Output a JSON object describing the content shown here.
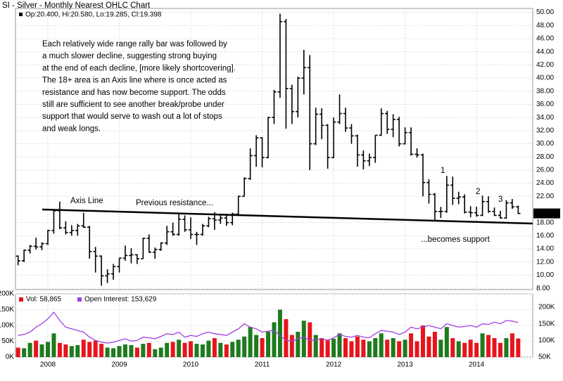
{
  "chart_data": {
    "type": "ohlc",
    "title": "SI - Silver - Monthly Nearest OHLC Chart",
    "legend": "Op:20.400, Hi:20.580, Lo:19.285, Cl:19.398",
    "color": "#000000",
    "grid": true,
    "categories": [
      null,
      null,
      null,
      null,
      null,
      "2008",
      null,
      null,
      null,
      null,
      null,
      null,
      null,
      null,
      null,
      null,
      null,
      "2009",
      null,
      null,
      null,
      null,
      null,
      null,
      null,
      null,
      null,
      null,
      null,
      "2010",
      null,
      null,
      null,
      null,
      null,
      null,
      null,
      null,
      null,
      null,
      null,
      "2011",
      null,
      null,
      null,
      null,
      null,
      null,
      null,
      null,
      null,
      null,
      null,
      "2012",
      null,
      null,
      null,
      null,
      null,
      null,
      null,
      null,
      null,
      null,
      null,
      "2013",
      null,
      null,
      null,
      null,
      null,
      null,
      null,
      null,
      null,
      null,
      null,
      "2014",
      null,
      null,
      null,
      null,
      null,
      null,
      null
    ],
    "open": [
      12.9,
      12.2,
      13.8,
      14.4,
      14.3,
      14.8,
      16.8,
      19.8,
      17.2,
      16.5,
      16.8,
      17.5,
      17.3,
      13.6,
      12.9,
      9.9,
      10.2,
      11.3,
      12.6,
      13.0,
      13.1,
      12.5,
      15.6,
      13.5,
      13.9,
      14.9,
      16.6,
      16.2,
      18.5,
      16.9,
      16.2,
      16.2,
      17.5,
      18.6,
      18.4,
      18.7,
      18.0,
      19.3,
      22.0,
      24.7,
      28.2,
      30.9,
      27.9,
      34.0,
      37.9,
      48.6,
      38.4,
      34.9,
      40.0,
      41.6,
      30.0,
      34.5,
      32.8,
      27.9,
      33.3,
      34.6,
      32.4,
      31.2,
      28.3,
      27.4,
      27.9,
      31.3,
      34.6,
      32.2,
      33.7,
      30.0,
      31.7,
      28.4,
      28.3,
      24.1,
      22.3,
      19.7,
      19.7,
      23.7,
      21.7,
      21.9,
      19.6,
      19.5,
      19.1,
      21.2,
      19.7,
      19.1,
      18.7,
      21.0,
      20.4
    ],
    "high": [
      13.0,
      13.9,
      14.6,
      15.7,
      15.0,
      16.9,
      20.0,
      21.2,
      18.2,
      17.6,
      17.8,
      19.5,
      17.5,
      14.3,
      13.0,
      10.9,
      11.7,
      12.6,
      14.5,
      14.1,
      13.2,
      15.7,
      16.2,
      14.2,
      15.0,
      17.5,
      18.0,
      19.3,
      19.1,
      18.8,
      16.6,
      17.8,
      18.9,
      19.6,
      19.3,
      19.1,
      19.5,
      22.1,
      24.9,
      29.3,
      31.3,
      31.0,
      34.1,
      38.2,
      49.8,
      49.0,
      39.0,
      40.2,
      44.3,
      43.5,
      35.5,
      35.4,
      33.0,
      34.0,
      37.5,
      35.5,
      33.0,
      31.4,
      29.0,
      28.5,
      31.3,
      35.4,
      35.0,
      34.5,
      34.1,
      32.5,
      32.5,
      29.3,
      28.5,
      24.6,
      22.5,
      20.4,
      25.1,
      25.0,
      22.7,
      22.3,
      20.5,
      20.4,
      22.1,
      22.0,
      20.3,
      19.8,
      21.4,
      21.6,
      20.58
    ],
    "low": [
      11.5,
      12.0,
      13.3,
      13.9,
      13.8,
      14.6,
      16.3,
      17.0,
      16.2,
      16.0,
      16.0,
      17.2,
      12.5,
      10.4,
      8.4,
      8.8,
      9.3,
      10.4,
      12.2,
      11.8,
      11.7,
      12.5,
      13.4,
      12.5,
      13.7,
      14.6,
      16.0,
      16.0,
      16.6,
      15.5,
      14.6,
      16.0,
      17.3,
      16.9,
      17.8,
      17.5,
      17.6,
      19.0,
      22.0,
      24.5,
      26.5,
      26.4,
      27.8,
      33.0,
      37.0,
      32.3,
      33.0,
      34.0,
      37.5,
      26.0,
      29.8,
      30.7,
      26.2,
      27.8,
      33.0,
      31.8,
      30.0,
      26.5,
      26.1,
      26.6,
      27.1,
      31.2,
      31.5,
      31.0,
      29.6,
      29.9,
      28.2,
      27.9,
      22.0,
      20.9,
      18.2,
      18.7,
      19.5,
      20.7,
      20.8,
      19.4,
      18.8,
      18.9,
      19.0,
      19.5,
      19.0,
      18.6,
      18.6,
      20.1,
      19.285
    ],
    "close": [
      12.2,
      13.8,
      14.4,
      14.3,
      14.8,
      16.8,
      19.8,
      17.2,
      16.5,
      16.8,
      17.5,
      17.3,
      13.6,
      12.9,
      9.9,
      10.2,
      11.3,
      12.6,
      13.0,
      13.1,
      12.5,
      15.6,
      13.5,
      13.9,
      14.9,
      16.6,
      16.2,
      18.5,
      16.9,
      16.2,
      16.2,
      17.5,
      18.6,
      18.4,
      18.7,
      18.0,
      19.3,
      22.0,
      24.7,
      28.2,
      30.9,
      27.9,
      34.0,
      37.9,
      48.6,
      38.4,
      34.9,
      40.0,
      41.6,
      30.0,
      34.5,
      32.8,
      27.9,
      33.3,
      34.6,
      32.4,
      31.2,
      28.3,
      27.4,
      27.9,
      31.3,
      34.6,
      32.2,
      33.7,
      30.0,
      31.7,
      28.4,
      28.3,
      24.1,
      22.3,
      19.7,
      19.7,
      23.7,
      21.7,
      21.9,
      19.6,
      19.5,
      19.1,
      21.2,
      19.7,
      19.1,
      18.7,
      21.0,
      20.4,
      19.398
    ],
    "ylim": [
      7.8,
      50.6
    ],
    "yticks": [
      {
        "value": 8,
        "label": "8.00"
      },
      {
        "value": 10,
        "label": "10.00"
      },
      {
        "value": 12,
        "label": "12.00"
      },
      {
        "value": 14,
        "label": "14.00"
      },
      {
        "value": 16,
        "label": "16.00"
      },
      {
        "value": 18,
        "label": "18.00"
      },
      {
        "value": 22,
        "label": "22.00"
      },
      {
        "value": 24,
        "label": "24.00"
      },
      {
        "value": 26,
        "label": "26.00"
      },
      {
        "value": 28,
        "label": "28.00"
      },
      {
        "value": 30,
        "label": "30.00"
      },
      {
        "value": 32,
        "label": "32.00"
      },
      {
        "value": 34,
        "label": "34.00"
      },
      {
        "value": 36,
        "label": "36.00"
      },
      {
        "value": 38,
        "label": "38.00"
      },
      {
        "value": 40,
        "label": "40.00"
      },
      {
        "value": 42,
        "label": "42.00"
      },
      {
        "value": 44,
        "label": "44.00"
      },
      {
        "value": 46,
        "label": "46.00"
      },
      {
        "value": 48,
        "label": "48.00"
      },
      {
        "value": 50,
        "label": "50.00"
      }
    ],
    "last_value": 19.398,
    "annotations": {
      "text": [
        "Each relatively wide range rally bar was followed by",
        "a much slower decline, suggesting strong buying",
        "at the end of each decline, [more likely shortcovering].",
        "The 18+ area is an Axis line where is once acted as",
        "resistance and has now become support.  The odds",
        "still are sufficient to see another break/probe under",
        "support that would serve to wash out a lot of stops",
        "and weak longs."
      ],
      "axis_line": "Axis Line",
      "previous": "Previous resistance...",
      "support": "...becomes support",
      "peaks": [
        "1",
        "2",
        "3"
      ]
    },
    "volume": {
      "type": "bar",
      "name": "Vol: 58,865",
      "up_color": "#1e7b1e",
      "down_color": "#e8141c",
      "values": [
        30000,
        28000,
        45000,
        52000,
        40000,
        48000,
        75000,
        45000,
        40000,
        35000,
        38000,
        55000,
        48000,
        52000,
        42000,
        30000,
        28000,
        35000,
        40000,
        38000,
        30000,
        42000,
        45000,
        25000,
        30000,
        45000,
        48000,
        55000,
        45000,
        50000,
        42000,
        40000,
        52000,
        60000,
        45000,
        40000,
        48000,
        55000,
        65000,
        95000,
        70000,
        60000,
        80000,
        110000,
        150000,
        120000,
        70000,
        80000,
        115000,
        110000,
        70000,
        60000,
        55000,
        58000,
        75000,
        60000,
        50000,
        65000,
        55000,
        50000,
        60000,
        75000,
        55000,
        60000,
        50000,
        55000,
        75000,
        50000,
        100000,
        65000,
        80000,
        55000,
        95000,
        60000,
        50000,
        45000,
        55000,
        45000,
        75000,
        70000,
        60000,
        45000,
        60000,
        75000,
        58865
      ],
      "ylim": [
        0,
        200000
      ],
      "yticks": [
        {
          "value": 0,
          "label": "0K"
        },
        {
          "value": 50000,
          "label": "50K"
        },
        {
          "value": 100000,
          "label": "100K"
        },
        {
          "value": 150000,
          "label": "150K"
        },
        {
          "value": 200000,
          "label": "200K"
        }
      ]
    },
    "open_interest": {
      "type": "line",
      "name": "Open Interest: 153,629",
      "color": "#a040e0",
      "axis": "y2",
      "values": [
        115000,
        118000,
        125000,
        140000,
        150000,
        165000,
        185000,
        160000,
        140000,
        135000,
        130000,
        125000,
        110000,
        100000,
        95000,
        92000,
        95000,
        100000,
        105000,
        98000,
        100000,
        110000,
        108000,
        105000,
        112000,
        120000,
        118000,
        125000,
        110000,
        115000,
        112000,
        120000,
        125000,
        120000,
        118000,
        115000,
        125000,
        135000,
        150000,
        140000,
        135000,
        125000,
        128000,
        130000,
        115000,
        100000,
        98000,
        105000,
        110000,
        100000,
        102000,
        105000,
        100000,
        108000,
        118000,
        112000,
        110000,
        115000,
        110000,
        108000,
        120000,
        130000,
        128000,
        125000,
        118000,
        125000,
        140000,
        135000,
        140000,
        145000,
        140000,
        135000,
        150000,
        145000,
        140000,
        142000,
        145000,
        140000,
        150000,
        148000,
        155000,
        150000,
        160000,
        158000,
        153629
      ],
      "y2lim": [
        50000,
        240000
      ],
      "y2ticks": [
        {
          "value": 50000,
          "label": "50K"
        },
        {
          "value": 100000,
          "label": "100K"
        },
        {
          "value": 150000,
          "label": "150K"
        },
        {
          "value": 200000,
          "label": "200K"
        }
      ]
    }
  }
}
